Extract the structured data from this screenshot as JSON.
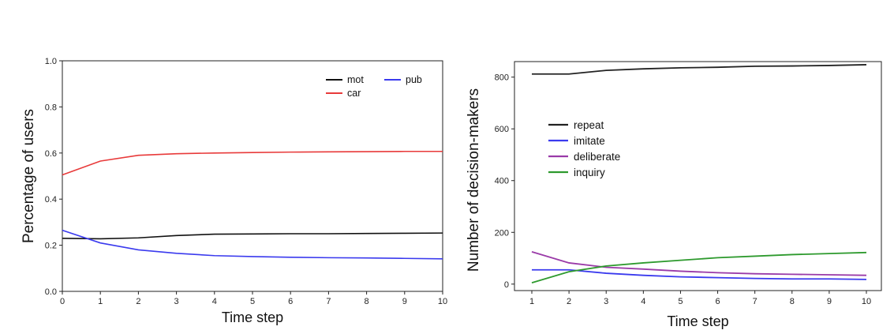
{
  "chart_data": [
    {
      "type": "line",
      "xlabel": "Time step",
      "ylabel": "Percentage of users",
      "xlim": [
        0,
        10
      ],
      "ylim": [
        0.0,
        1.0
      ],
      "x_ticks": [
        "0",
        "1",
        "2",
        "3",
        "4",
        "5",
        "6",
        "7",
        "8",
        "9",
        "10"
      ],
      "y_ticks": [
        "0.0",
        "0.2",
        "0.4",
        "0.6",
        "0.8",
        "1.0"
      ],
      "legend_position": "top-right",
      "grid": false,
      "x": [
        0,
        1,
        2,
        3,
        4,
        5,
        6,
        7,
        8,
        9,
        10
      ],
      "series": [
        {
          "name": "mot",
          "color": "#111111",
          "values": [
            0.23,
            0.228,
            0.232,
            0.242,
            0.248,
            0.249,
            0.25,
            0.25,
            0.251,
            0.252,
            0.253
          ]
        },
        {
          "name": "car",
          "color": "#e83a3a",
          "values": [
            0.505,
            0.565,
            0.59,
            0.597,
            0.6,
            0.602,
            0.604,
            0.605,
            0.606,
            0.607,
            0.607
          ]
        },
        {
          "name": "pub",
          "color": "#3a3aee",
          "values": [
            0.265,
            0.21,
            0.18,
            0.165,
            0.155,
            0.151,
            0.148,
            0.146,
            0.145,
            0.143,
            0.141
          ]
        }
      ]
    },
    {
      "type": "line",
      "xlabel": "Time step",
      "ylabel": "Number of decision-makers",
      "xlim": [
        1,
        10
      ],
      "ylim": [
        -25,
        860
      ],
      "x_ticks": [
        "1",
        "2",
        "3",
        "4",
        "5",
        "6",
        "7",
        "8",
        "9",
        "10"
      ],
      "y_ticks": [
        "0",
        "200",
        "400",
        "600",
        "800"
      ],
      "legend_position": "center-left",
      "grid": false,
      "x": [
        1,
        2,
        3,
        4,
        5,
        6,
        7,
        8,
        9,
        10
      ],
      "series": [
        {
          "name": "repeat",
          "color": "#222222",
          "values": [
            812,
            812,
            826,
            832,
            836,
            838,
            842,
            843,
            845,
            848
          ]
        },
        {
          "name": "imitate",
          "color": "#3a3aee",
          "values": [
            55,
            55,
            42,
            34,
            28,
            25,
            22,
            20,
            20,
            18
          ]
        },
        {
          "name": "deliberate",
          "color": "#9a3aa8",
          "values": [
            125,
            82,
            65,
            58,
            50,
            44,
            40,
            38,
            36,
            34
          ]
        },
        {
          "name": "inquiry",
          "color": "#2e9a2e",
          "values": [
            5,
            48,
            70,
            82,
            92,
            102,
            108,
            114,
            118,
            122
          ]
        }
      ]
    }
  ]
}
